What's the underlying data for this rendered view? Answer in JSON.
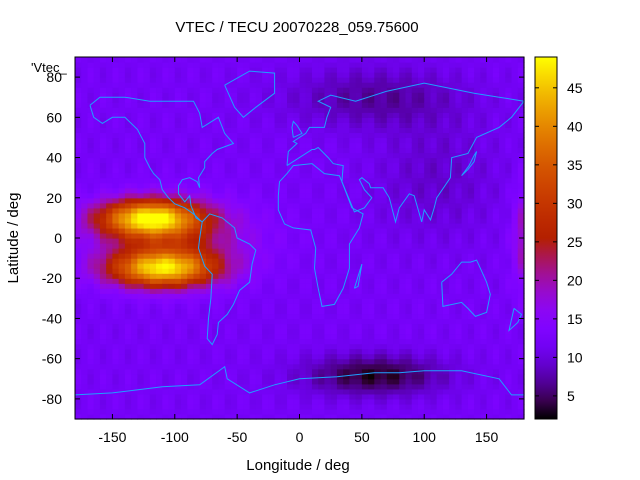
{
  "chart_data": {
    "type": "heatmap",
    "title": "VTEC / TECU 20070228_059.75600",
    "xlabel": "Longitude / deg",
    "ylabel": "Latitude / deg",
    "legend_label": "'Vtec_",
    "xlim": [
      -180,
      180
    ],
    "ylim": [
      -90,
      90
    ],
    "xticks": [
      -150,
      -100,
      -50,
      0,
      50,
      100,
      150
    ],
    "yticks": [
      -80,
      -60,
      -40,
      -20,
      0,
      20,
      40,
      60,
      80
    ],
    "colorbar": {
      "min": 2,
      "max": 49,
      "ticks": [
        5,
        10,
        15,
        20,
        25,
        30,
        35,
        40,
        45
      ]
    },
    "background_vtec": 12,
    "features": [
      {
        "name": "equatorial-anomaly-north-crest",
        "lon": -120,
        "lat": 10,
        "sigma_lon": 40,
        "sigma_lat": 9,
        "peak": 33
      },
      {
        "name": "equatorial-anomaly-south-crest",
        "lon": -110,
        "lat": -15,
        "sigma_lon": 42,
        "sigma_lat": 9,
        "peak": 32
      },
      {
        "name": "equatorial-band-core",
        "lon": -100,
        "lat": 0,
        "sigma_lon": 60,
        "sigma_lat": 18,
        "peak": 10
      },
      {
        "name": "east-edge-enhancement",
        "lon": 185,
        "lat": 0,
        "sigma_lon": 12,
        "sigma_lat": 25,
        "peak": 11
      },
      {
        "name": "antarctic-depletion",
        "lon": 60,
        "lat": -68,
        "sigma_lon": 55,
        "sigma_lat": 10,
        "peak": -9
      },
      {
        "name": "arctic-depletion",
        "lon": 60,
        "lat": 70,
        "sigma_lon": 70,
        "sigma_lat": 15,
        "peak": -5
      },
      {
        "name": "asia-night-depletion",
        "lon": 110,
        "lat": 30,
        "sigma_lon": 50,
        "sigma_lat": 30,
        "peak": -3
      }
    ],
    "coastlines": [
      {
        "name": "north-america",
        "points": [
          [
            -168,
            66
          ],
          [
            -160,
            70
          ],
          [
            -140,
            70
          ],
          [
            -120,
            68
          ],
          [
            -100,
            68
          ],
          [
            -85,
            68
          ],
          [
            -80,
            62
          ],
          [
            -78,
            55
          ],
          [
            -65,
            60
          ],
          [
            -60,
            52
          ],
          [
            -53,
            47
          ],
          [
            -66,
            44
          ],
          [
            -70,
            42
          ],
          [
            -76,
            38
          ],
          [
            -76,
            35
          ],
          [
            -81,
            30
          ],
          [
            -80,
            25
          ],
          [
            -82,
            28
          ],
          [
            -88,
            30
          ],
          [
            -94,
            29
          ],
          [
            -97,
            26
          ],
          [
            -97,
            22
          ],
          [
            -92,
            18
          ],
          [
            -88,
            21
          ],
          [
            -87,
            16
          ],
          [
            -83,
            10
          ],
          [
            -78,
            8
          ],
          [
            -80,
            9
          ],
          [
            -85,
            12
          ],
          [
            -92,
            15
          ],
          [
            -100,
            17
          ],
          [
            -105,
            20
          ],
          [
            -110,
            24
          ],
          [
            -112,
            29
          ],
          [
            -117,
            32
          ],
          [
            -120,
            35
          ],
          [
            -124,
            40
          ],
          [
            -124,
            47
          ],
          [
            -130,
            54
          ],
          [
            -140,
            60
          ],
          [
            -150,
            60
          ],
          [
            -158,
            57
          ],
          [
            -165,
            60
          ],
          [
            -168,
            66
          ]
        ]
      },
      {
        "name": "south-america",
        "points": [
          [
            -78,
            8
          ],
          [
            -72,
            12
          ],
          [
            -62,
            10
          ],
          [
            -52,
            5
          ],
          [
            -50,
            0
          ],
          [
            -40,
            -3
          ],
          [
            -35,
            -6
          ],
          [
            -38,
            -13
          ],
          [
            -40,
            -22
          ],
          [
            -48,
            -26
          ],
          [
            -53,
            -33
          ],
          [
            -58,
            -38
          ],
          [
            -65,
            -42
          ],
          [
            -66,
            -48
          ],
          [
            -70,
            -53
          ],
          [
            -74,
            -50
          ],
          [
            -73,
            -40
          ],
          [
            -71,
            -30
          ],
          [
            -70,
            -18
          ],
          [
            -76,
            -14
          ],
          [
            -81,
            -5
          ],
          [
            -80,
            0
          ],
          [
            -78,
            8
          ]
        ]
      },
      {
        "name": "greenland",
        "points": [
          [
            -60,
            76
          ],
          [
            -40,
            83
          ],
          [
            -20,
            82
          ],
          [
            -20,
            72
          ],
          [
            -35,
            65
          ],
          [
            -45,
            60
          ],
          [
            -52,
            65
          ],
          [
            -60,
            76
          ]
        ]
      },
      {
        "name": "africa",
        "points": [
          [
            -17,
            21
          ],
          [
            -16,
            28
          ],
          [
            -10,
            32
          ],
          [
            -5,
            36
          ],
          [
            10,
            37
          ],
          [
            20,
            32
          ],
          [
            32,
            31
          ],
          [
            34,
            28
          ],
          [
            42,
            15
          ],
          [
            51,
            12
          ],
          [
            48,
            5
          ],
          [
            40,
            -3
          ],
          [
            40,
            -15
          ],
          [
            35,
            -25
          ],
          [
            28,
            -33
          ],
          [
            18,
            -34
          ],
          [
            15,
            -25
          ],
          [
            12,
            -15
          ],
          [
            13,
            -5
          ],
          [
            9,
            4
          ],
          [
            -5,
            5
          ],
          [
            -12,
            7
          ],
          [
            -17,
            14
          ],
          [
            -17,
            21
          ]
        ]
      },
      {
        "name": "eurasia",
        "points": [
          [
            -10,
            36
          ],
          [
            -9,
            43
          ],
          [
            -2,
            47
          ],
          [
            -5,
            48
          ],
          [
            5,
            52
          ],
          [
            8,
            55
          ],
          [
            12,
            55
          ],
          [
            20,
            55
          ],
          [
            22,
            60
          ],
          [
            25,
            65
          ],
          [
            15,
            68
          ],
          [
            25,
            71
          ],
          [
            45,
            68
          ],
          [
            70,
            73
          ],
          [
            100,
            77
          ],
          [
            140,
            72
          ],
          [
            160,
            70
          ],
          [
            180,
            68
          ],
          [
            170,
            60
          ],
          [
            160,
            55
          ],
          [
            142,
            50
          ],
          [
            135,
            42
          ],
          [
            122,
            40
          ],
          [
            121,
            30
          ],
          [
            110,
            20
          ],
          [
            108,
            15
          ],
          [
            105,
            9
          ],
          [
            100,
            14
          ],
          [
            98,
            8
          ],
          [
            92,
            21
          ],
          [
            88,
            22
          ],
          [
            80,
            15
          ],
          [
            77,
            8
          ],
          [
            72,
            20
          ],
          [
            67,
            25
          ],
          [
            57,
            25
          ],
          [
            56,
            27
          ],
          [
            50,
            30
          ],
          [
            48,
            29
          ],
          [
            52,
            24
          ],
          [
            58,
            20
          ],
          [
            52,
            15
          ],
          [
            44,
            13
          ],
          [
            34,
            28
          ],
          [
            35,
            36
          ],
          [
            27,
            37
          ],
          [
            23,
            40
          ],
          [
            15,
            45
          ],
          [
            12,
            44
          ],
          [
            10,
            44
          ],
          [
            -10,
            36
          ]
        ]
      },
      {
        "name": "australia",
        "points": [
          [
            114,
            -22
          ],
          [
            122,
            -18
          ],
          [
            130,
            -12
          ],
          [
            137,
            -12
          ],
          [
            142,
            -11
          ],
          [
            145,
            -15
          ],
          [
            150,
            -22
          ],
          [
            153,
            -28
          ],
          [
            150,
            -37
          ],
          [
            141,
            -39
          ],
          [
            135,
            -35
          ],
          [
            130,
            -32
          ],
          [
            115,
            -34
          ],
          [
            114,
            -22
          ]
        ]
      },
      {
        "name": "antarctica",
        "points": [
          [
            -180,
            -78
          ],
          [
            -150,
            -77
          ],
          [
            -110,
            -74
          ],
          [
            -80,
            -73
          ],
          [
            -60,
            -64
          ],
          [
            -58,
            -70
          ],
          [
            -40,
            -77
          ],
          [
            -20,
            -73
          ],
          [
            0,
            -70
          ],
          [
            30,
            -69
          ],
          [
            60,
            -67
          ],
          [
            80,
            -67
          ],
          [
            100,
            -66
          ],
          [
            130,
            -66
          ],
          [
            160,
            -70
          ],
          [
            170,
            -78
          ],
          [
            180,
            -78
          ]
        ]
      },
      {
        "name": "new-zealand",
        "points": [
          [
            172,
            -35
          ],
          [
            178,
            -38
          ],
          [
            175,
            -42
          ],
          [
            168,
            -46
          ],
          [
            172,
            -35
          ]
        ]
      },
      {
        "name": "japan",
        "points": [
          [
            130,
            31
          ],
          [
            135,
            34
          ],
          [
            140,
            38
          ],
          [
            142,
            43
          ],
          [
            140,
            41
          ],
          [
            136,
            36
          ],
          [
            130,
            31
          ]
        ]
      },
      {
        "name": "great-britain",
        "points": [
          [
            -5,
            50
          ],
          [
            2,
            52
          ],
          [
            -2,
            56
          ],
          [
            -5,
            58
          ],
          [
            -6,
            55
          ],
          [
            -5,
            50
          ]
        ]
      },
      {
        "name": "madagascar",
        "points": [
          [
            44,
            -25
          ],
          [
            49,
            -15
          ],
          [
            50,
            -13
          ],
          [
            47,
            -24
          ],
          [
            44,
            -25
          ]
        ]
      }
    ]
  }
}
